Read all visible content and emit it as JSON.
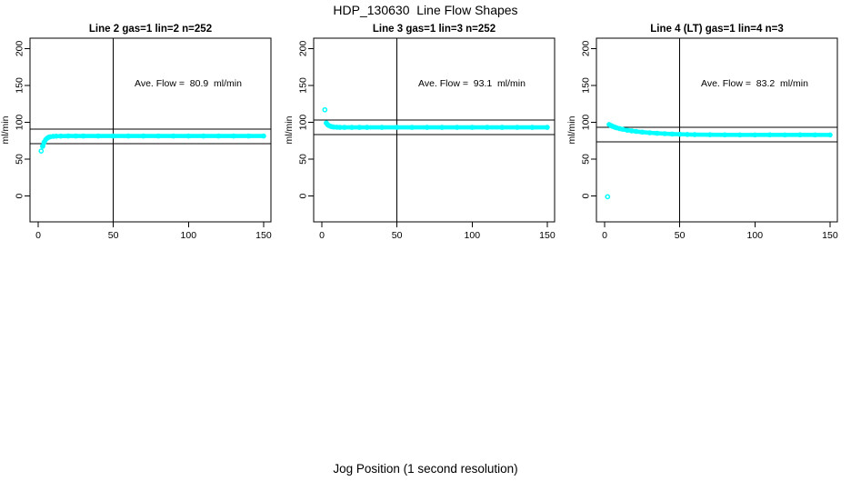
{
  "figure": {
    "title": "HDP_130630  Line Flow Shapes",
    "x_axis_label": "Jog Position (1 second resolution)",
    "colors": {
      "points": "#00FFFF",
      "axis": "#000000",
      "background": "#FFFFFF"
    }
  },
  "chart_data": [
    {
      "type": "scatter",
      "title": "Line 2 gas=1 lin=2 n=252",
      "ylabel": "ml/min",
      "annotation": "Ave. Flow =  80.9  ml/min",
      "ave_flow": 80.9,
      "n": 252,
      "xlim": [
        0,
        150
      ],
      "ylim": [
        0,
        200
      ],
      "x_ticks": [
        0,
        50,
        100,
        150
      ],
      "y_ticks": [
        0,
        50,
        100,
        150,
        200
      ],
      "ref_line_x": 50,
      "ref_lines_y": [
        90.9,
        70.9
      ],
      "lead_points": [
        [
          2,
          61
        ],
        [
          3,
          67.5
        ],
        [
          4,
          73
        ]
      ],
      "band_points": [
        [
          3,
          67.5
        ],
        [
          4,
          73
        ],
        [
          5,
          76.5
        ],
        [
          6,
          78.5
        ],
        [
          7,
          79.7
        ],
        [
          8,
          80.4
        ],
        [
          10,
          81
        ],
        [
          12,
          81.2
        ],
        [
          15,
          81.3
        ],
        [
          20,
          81.4
        ],
        [
          25,
          81.4
        ],
        [
          30,
          81.4
        ],
        [
          40,
          81.4
        ],
        [
          50,
          81.4
        ],
        [
          60,
          81.4
        ],
        [
          70,
          81.4
        ],
        [
          80,
          81.4
        ],
        [
          90,
          81.4
        ],
        [
          100,
          81.4
        ],
        [
          110,
          81.4
        ],
        [
          120,
          81.4
        ],
        [
          130,
          81.4
        ],
        [
          140,
          81.4
        ],
        [
          150,
          81.4
        ]
      ]
    },
    {
      "type": "scatter",
      "title": "Line 3 gas=1 lin=3 n=252",
      "ylabel": "ml/min",
      "annotation": "Ave. Flow =  93.1  ml/min",
      "ave_flow": 93.1,
      "n": 252,
      "xlim": [
        0,
        150
      ],
      "ylim": [
        0,
        200
      ],
      "x_ticks": [
        0,
        50,
        100,
        150
      ],
      "y_ticks": [
        0,
        50,
        100,
        150,
        200
      ],
      "ref_line_x": 50,
      "ref_lines_y": [
        103.1,
        83.1
      ],
      "lead_points": [
        [
          2,
          117
        ],
        [
          3,
          99
        ]
      ],
      "band_points": [
        [
          3,
          99
        ],
        [
          4,
          96.5
        ],
        [
          5,
          95.2
        ],
        [
          6,
          94.4
        ],
        [
          7,
          93.9
        ],
        [
          8,
          93.6
        ],
        [
          10,
          93.3
        ],
        [
          12,
          93.2
        ],
        [
          15,
          93.1
        ],
        [
          20,
          93.1
        ],
        [
          25,
          93.1
        ],
        [
          30,
          93.1
        ],
        [
          40,
          93.1
        ],
        [
          50,
          93.1
        ],
        [
          60,
          93.1
        ],
        [
          70,
          93.1
        ],
        [
          80,
          93.1
        ],
        [
          90,
          93.1
        ],
        [
          100,
          93.1
        ],
        [
          110,
          93.1
        ],
        [
          120,
          93.1
        ],
        [
          130,
          93.1
        ],
        [
          140,
          93.1
        ],
        [
          150,
          93.1
        ]
      ]
    },
    {
      "type": "scatter",
      "title": "Line 4 (LT) gas=1 lin=4 n=3",
      "ylabel": "ml/min",
      "annotation": "Ave. Flow =  83.2  ml/min",
      "ave_flow": 83.2,
      "n": 3,
      "xlim": [
        0,
        150
      ],
      "ylim": [
        0,
        200
      ],
      "x_ticks": [
        0,
        50,
        100,
        150
      ],
      "y_ticks": [
        0,
        50,
        100,
        150,
        200
      ],
      "ref_line_x": 50,
      "ref_lines_y": [
        93.2,
        73.2
      ],
      "lead_points": [
        [
          2,
          -1
        ]
      ],
      "band_points": [
        [
          3,
          97
        ],
        [
          4,
          95.8
        ],
        [
          5,
          94.8
        ],
        [
          6,
          93.9
        ],
        [
          7,
          93.2
        ],
        [
          8,
          92.5
        ],
        [
          10,
          91.4
        ],
        [
          12,
          90.5
        ],
        [
          15,
          89.3
        ],
        [
          18,
          88.4
        ],
        [
          21,
          87.6
        ],
        [
          25,
          86.7
        ],
        [
          30,
          85.8
        ],
        [
          35,
          85.1
        ],
        [
          40,
          84.6
        ],
        [
          45,
          84.1
        ],
        [
          50,
          83.8
        ],
        [
          55,
          83.5
        ],
        [
          60,
          83.3
        ],
        [
          70,
          83.1
        ],
        [
          80,
          83
        ],
        [
          90,
          82.9
        ],
        [
          100,
          82.9
        ],
        [
          110,
          83
        ],
        [
          120,
          82.9
        ],
        [
          130,
          83
        ],
        [
          140,
          82.9
        ],
        [
          150,
          82.9
        ]
      ]
    }
  ]
}
